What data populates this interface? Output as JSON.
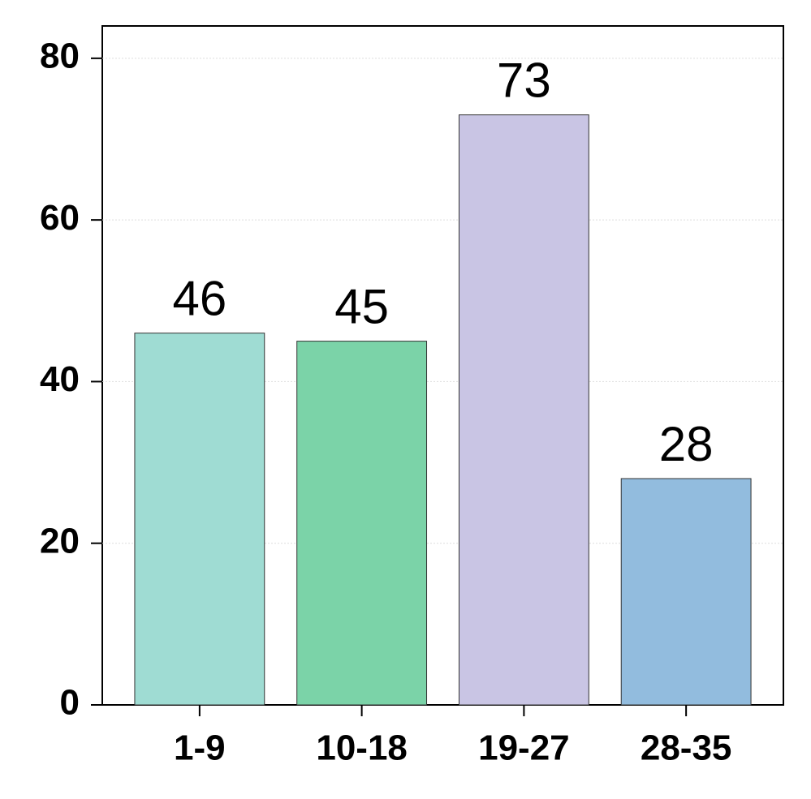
{
  "chart_data": {
    "type": "bar",
    "categories": [
      "1-9",
      "10-18",
      "19-27",
      "28-35"
    ],
    "values": [
      46,
      45,
      73,
      28
    ],
    "colors": [
      "#9fdcd3",
      "#7bd3a8",
      "#c9c5e4",
      "#92bcde"
    ],
    "ylim": [
      0,
      84
    ],
    "yticks": [
      0,
      20,
      40,
      60,
      80
    ],
    "grid": true
  }
}
